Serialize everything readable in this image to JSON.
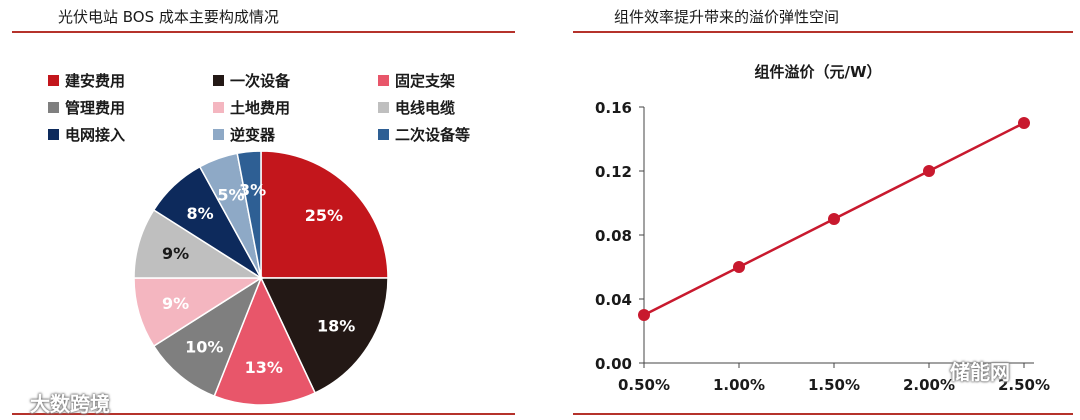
{
  "left_panel": {
    "title": "光伏电站 BOS 成本主要构成情况"
  },
  "right_panel": {
    "title": "组件效率提升带来的溢价弹性空间"
  },
  "watermarks": {
    "left": "大数跨境",
    "right": "储能网"
  },
  "colors": {
    "accent_rule": "#b5322b",
    "line_series": "#c8192e"
  },
  "chart_data": [
    {
      "type": "pie",
      "title": "",
      "legend_position": "top",
      "start_angle_deg": 0,
      "direction": "clockwise",
      "slices": [
        {
          "label": "建安费用",
          "value": 25,
          "display": "25%",
          "color": "#c3161c",
          "text_color": "#ffffff"
        },
        {
          "label": "一次设备",
          "value": 18,
          "display": "18%",
          "color": "#231815",
          "text_color": "#ffffff"
        },
        {
          "label": "固定支架",
          "value": 13,
          "display": "13%",
          "color": "#e8566a",
          "text_color": "#ffffff"
        },
        {
          "label": "管理费用",
          "value": 10,
          "display": "10%",
          "color": "#7f7f7f",
          "text_color": "#ffffff"
        },
        {
          "label": "土地费用",
          "value": 9,
          "display": "9%",
          "color": "#f4b6c0",
          "text_color": "#ffffff"
        },
        {
          "label": "电线电缆",
          "value": 9,
          "display": "9%",
          "color": "#bfbfbf",
          "text_color": "#1a1a1a"
        },
        {
          "label": "电网接入",
          "value": 8,
          "display": "8%",
          "color": "#0d2a5c",
          "text_color": "#ffffff"
        },
        {
          "label": "逆变器",
          "value": 5,
          "display": "5%",
          "color": "#8ea9c6",
          "text_color": "#ffffff"
        },
        {
          "label": "二次设备等",
          "value": 3,
          "display": "3%",
          "color": "#2e5f94",
          "text_color": "#ffffff"
        }
      ]
    },
    {
      "type": "line",
      "title": "组件溢价（元/W）",
      "xlabel": "",
      "ylabel": "",
      "categories": [
        "0.50%",
        "1.00%",
        "1.50%",
        "2.00%",
        "2.50%"
      ],
      "series": [
        {
          "values": [
            0.03,
            0.06,
            0.09,
            0.12,
            0.15
          ],
          "color": "#c8192e"
        }
      ],
      "ylim": [
        0,
        0.16
      ],
      "yticks": [
        "0.00",
        "0.04",
        "0.08",
        "0.12",
        "0.16"
      ],
      "grid": false,
      "legend": false
    }
  ]
}
